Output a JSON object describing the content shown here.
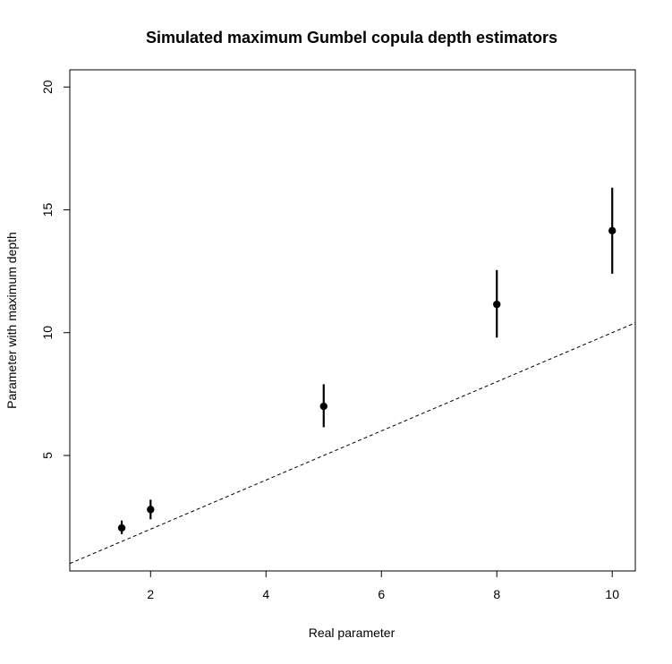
{
  "chart_data": {
    "type": "scatter",
    "title": "Simulated maximum Gumbel copula depth estimators",
    "xlabel": "Real parameter",
    "ylabel": "Parameter with maximum depth",
    "xlim": [
      0.6,
      10.4
    ],
    "ylim": [
      0.3,
      20.7
    ],
    "xticks": [
      2,
      4,
      6,
      8,
      10
    ],
    "yticks": [
      5,
      10,
      15,
      20
    ],
    "grid": false,
    "legend": "none",
    "points": [
      {
        "x": 1.5,
        "y": 2.05,
        "ylow": 1.8,
        "yhigh": 2.35
      },
      {
        "x": 2,
        "y": 2.8,
        "ylow": 2.4,
        "yhigh": 3.2
      },
      {
        "x": 5,
        "y": 7.0,
        "ylow": 6.15,
        "yhigh": 7.9
      },
      {
        "x": 8,
        "y": 11.15,
        "ylow": 9.8,
        "yhigh": 12.55
      },
      {
        "x": 10,
        "y": 14.15,
        "ylow": 12.4,
        "yhigh": 15.9
      }
    ],
    "reference_line": {
      "style": "dashed",
      "slope": 1,
      "intercept": 0
    },
    "colors": {
      "points": "#000000",
      "line": "#000000"
    }
  }
}
